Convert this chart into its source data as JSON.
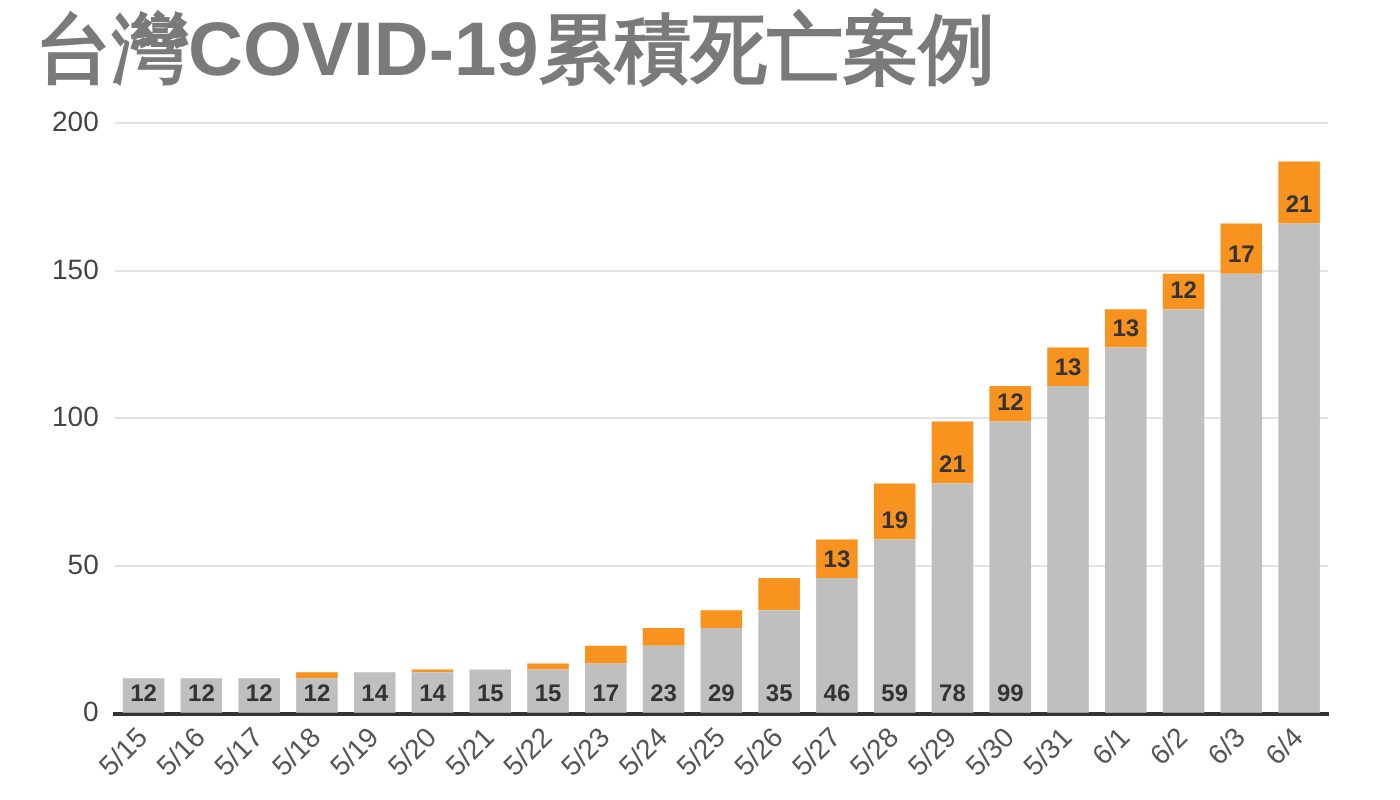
{
  "chart_data": {
    "type": "bar",
    "title": "台灣COVID-19累積死亡案例",
    "categories": [
      "5/15",
      "5/16",
      "5/17",
      "5/18",
      "5/19",
      "5/20",
      "5/21",
      "5/22",
      "5/23",
      "5/24",
      "5/25",
      "5/26",
      "5/27",
      "5/28",
      "5/29",
      "5/30",
      "5/31",
      "6/1",
      "6/2",
      "6/3",
      "6/4"
    ],
    "series": [
      {
        "color": "#bfbfbf",
        "values": [
          12,
          12,
          12,
          12,
          14,
          14,
          15,
          15,
          17,
          23,
          29,
          35,
          46,
          59,
          78,
          99,
          111,
          124,
          137,
          149,
          166
        ],
        "value_labels": [
          "12",
          "12",
          "12",
          "12",
          "14",
          "14",
          "15",
          "15",
          "17",
          "23",
          "29",
          "35",
          "46",
          "59",
          "78",
          "99",
          null,
          null,
          null,
          null,
          null
        ]
      },
      {
        "color": "#f7931e",
        "values": [
          0,
          0,
          0,
          2,
          0,
          1,
          0,
          2,
          6,
          6,
          6,
          11,
          13,
          19,
          21,
          12,
          13,
          13,
          12,
          17,
          21
        ],
        "value_labels": [
          null,
          null,
          null,
          null,
          null,
          null,
          null,
          null,
          null,
          null,
          null,
          null,
          "13",
          "19",
          "21",
          "12",
          "13",
          "13",
          "12",
          "17",
          "21"
        ]
      }
    ],
    "stacked": true,
    "ylim": [
      0,
      200
    ],
    "yticks": [
      0,
      50,
      100,
      150,
      200
    ],
    "grid": "y"
  }
}
